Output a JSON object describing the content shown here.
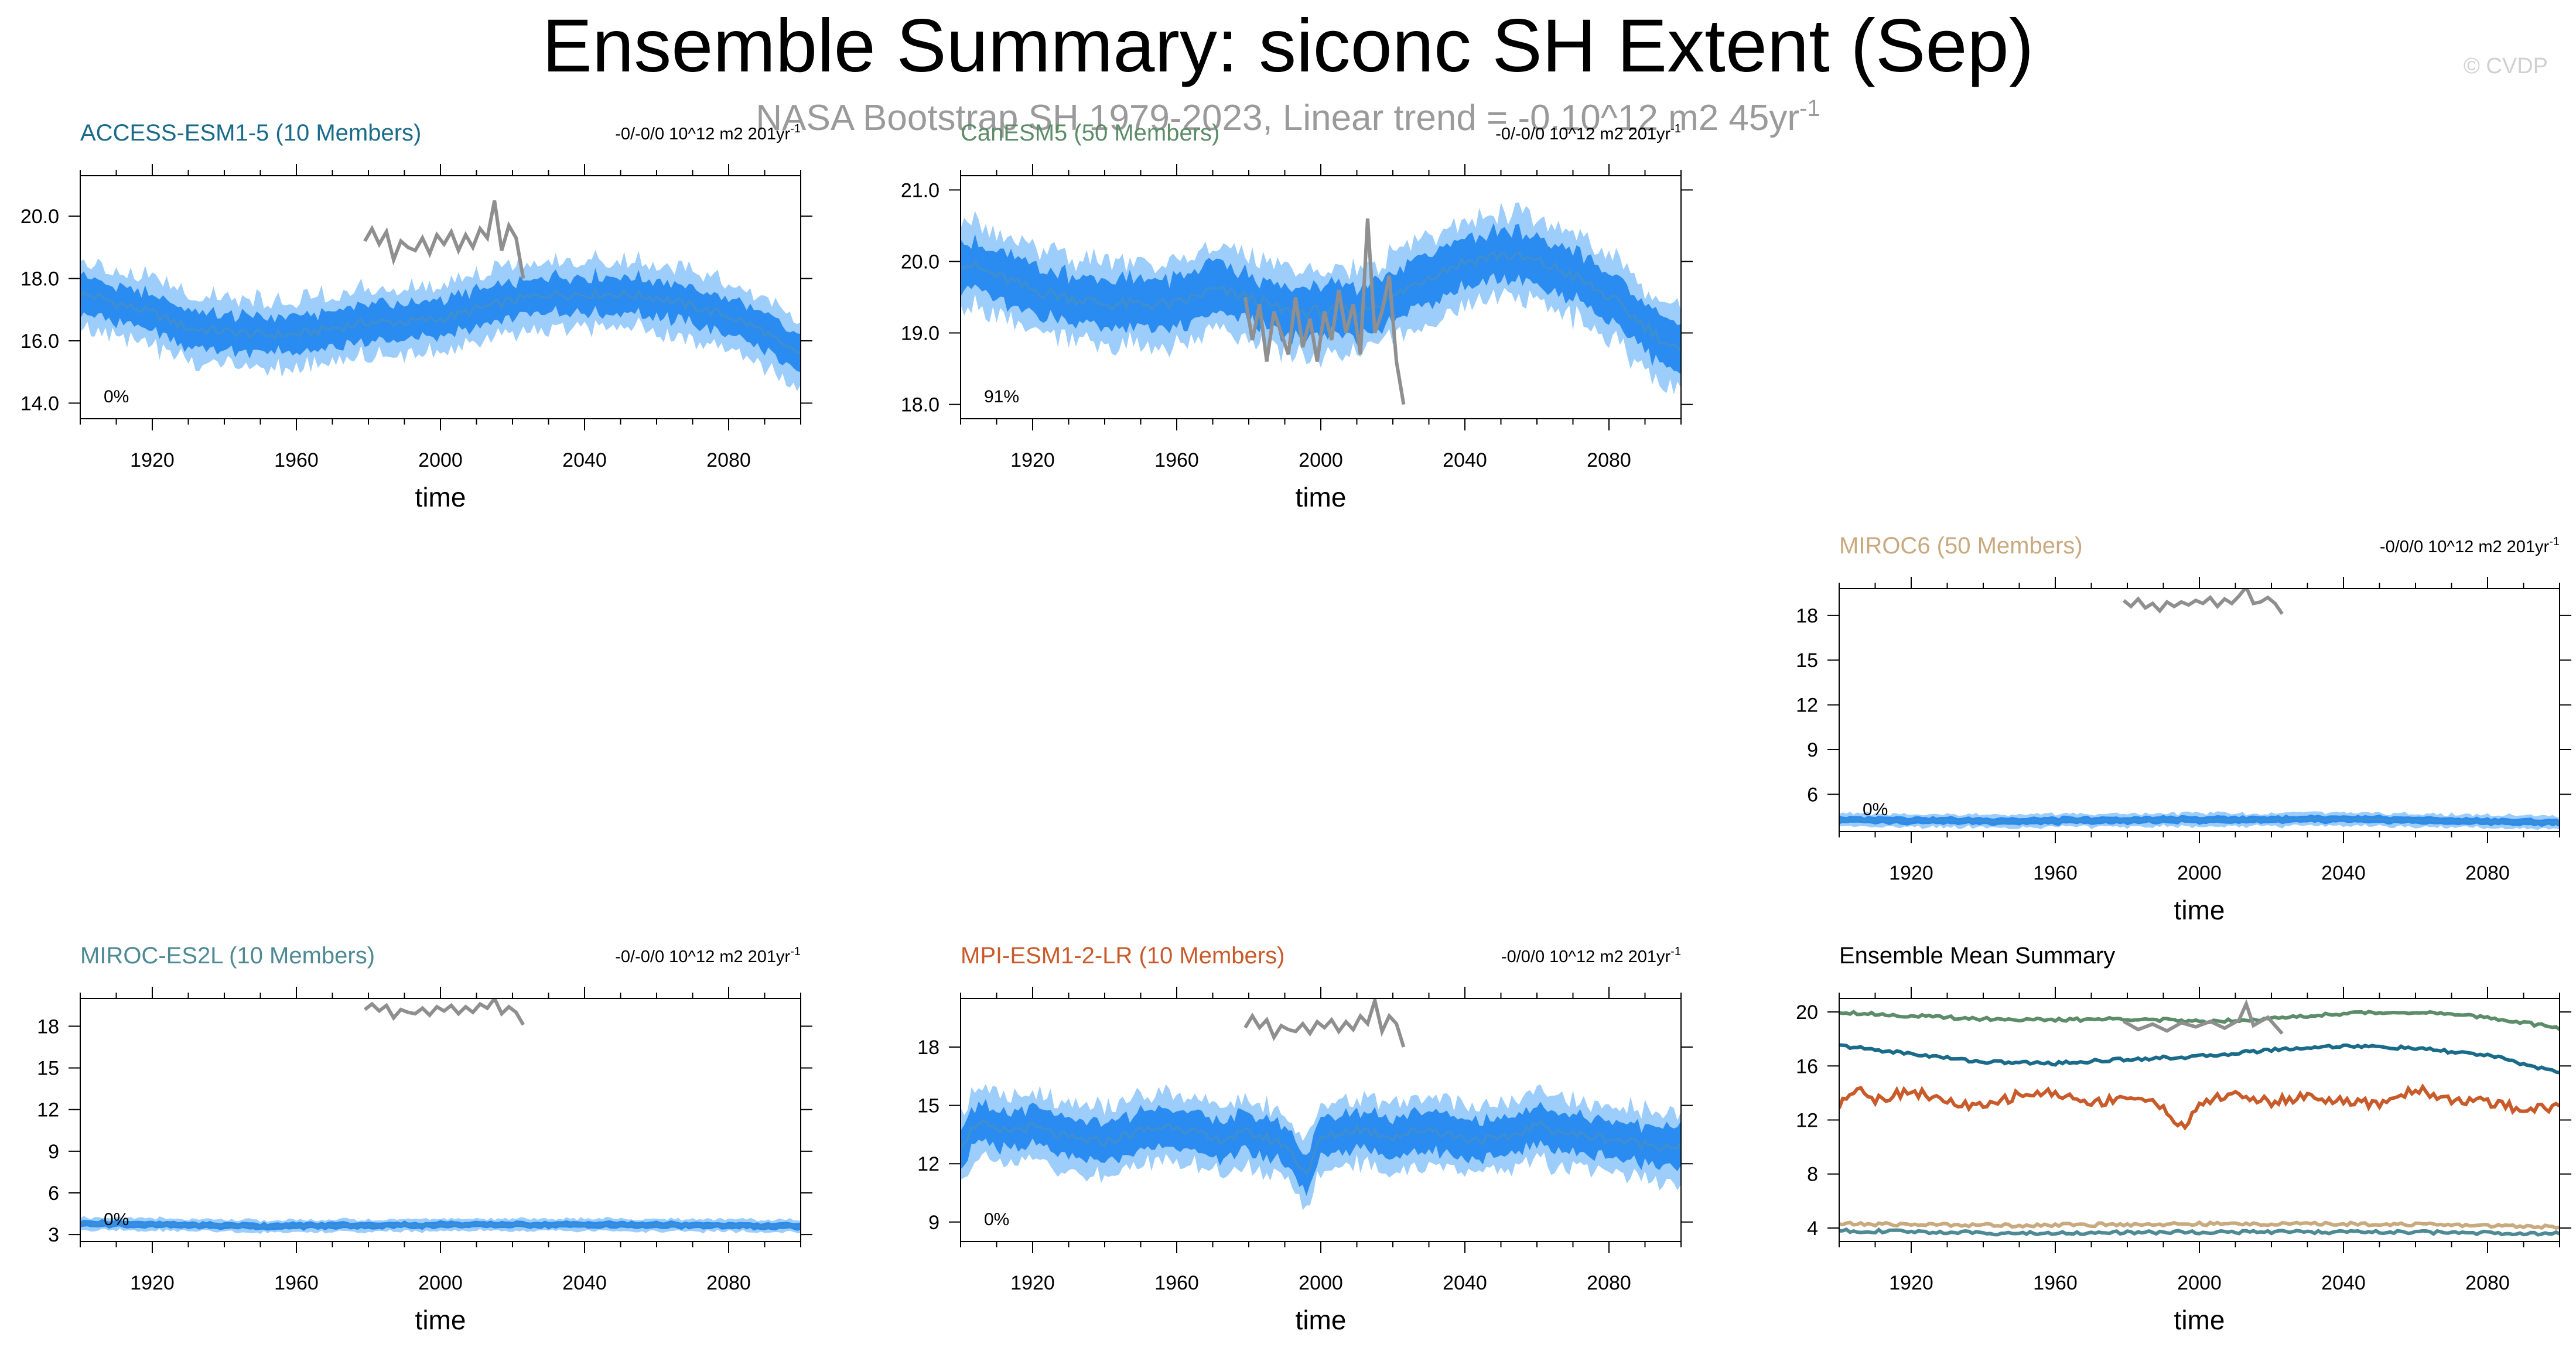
{
  "title": "Ensemble Summary: siconc SH Extent (Sep)",
  "subtitle": "NASA Bootstrap SH 1979-2023, Linear trend = -0.10^12 m2 45yr",
  "subtitle_sup": "-1",
  "watermark": "© CVDP",
  "colors": {
    "band_outer": "#9dcdfa",
    "band_inner": "#2a8cf0",
    "ensemble_mean_line": "#3f8ed0",
    "observations": "#8f8f8f",
    "axis": "#000000"
  },
  "chart_data": [
    {
      "id": "access",
      "type": "line",
      "title": "ACCESS-ESM1-5 (10 Members)",
      "title_color": "#1a6b8a",
      "trend_label": "-0/-0/0 10^12 m2 201yr",
      "trend_sup": "-1",
      "percent": "0%",
      "xlabel": "time",
      "xlim": [
        1900,
        2100
      ],
      "xticks": [
        "1920",
        "1960",
        "2000",
        "2040",
        "2080"
      ],
      "ylim": [
        13.5,
        21.3
      ],
      "yticks": [
        "14.0",
        "16.0",
        "18.0",
        "20.0"
      ],
      "ensemble_mean": {
        "x": [
          1900,
          1905,
          1910,
          1920,
          1930,
          1940,
          1950,
          1960,
          1970,
          1980,
          1990,
          2000,
          2010,
          2020,
          2030,
          2040,
          2050,
          2060,
          2070,
          2080,
          2090,
          2095,
          2100
        ],
        "y": [
          17.5,
          17.4,
          17.2,
          16.9,
          16.4,
          16.3,
          16.2,
          16.2,
          16.4,
          16.6,
          16.6,
          16.7,
          17.0,
          17.3,
          17.5,
          17.5,
          17.5,
          17.4,
          17.1,
          16.8,
          16.3,
          15.8,
          15.6
        ]
      },
      "spread_inner": 0.6,
      "spread_outer": 1.1,
      "observations": {
        "x": [
          1979,
          1981,
          1983,
          1985,
          1987,
          1989,
          1991,
          1993,
          1995,
          1997,
          1999,
          2001,
          2003,
          2005,
          2007,
          2009,
          2011,
          2013,
          2015,
          2017,
          2019,
          2021,
          2023
        ],
        "y": [
          19.2,
          19.6,
          19.1,
          19.5,
          18.6,
          19.2,
          19.0,
          18.9,
          19.3,
          18.8,
          19.4,
          19.1,
          19.5,
          18.9,
          19.4,
          19.0,
          19.6,
          19.3,
          20.5,
          18.9,
          19.7,
          19.3,
          18.0
        ]
      }
    },
    {
      "id": "canesm5",
      "type": "line",
      "title": "CanESM5 (50 Members)",
      "title_color": "#5c8c68",
      "trend_label": "-0/-0/0 10^12 m2 201yr",
      "trend_sup": "-1",
      "percent": "91%",
      "xlabel": "time",
      "xlim": [
        1900,
        2100
      ],
      "xticks": [
        "1920",
        "1960",
        "2000",
        "2040",
        "2080"
      ],
      "ylim": [
        17.8,
        21.2
      ],
      "yticks": [
        "18.0",
        "19.0",
        "20.0",
        "21.0"
      ],
      "ensemble_mean": {
        "x": [
          1900,
          1910,
          1920,
          1930,
          1940,
          1950,
          1960,
          1970,
          1980,
          1990,
          2000,
          2010,
          2020,
          2030,
          2040,
          2050,
          2060,
          2070,
          2080,
          2090,
          2100
        ],
        "y": [
          20.0,
          19.8,
          19.6,
          19.5,
          19.4,
          19.4,
          19.4,
          19.6,
          19.5,
          19.3,
          19.3,
          19.3,
          19.5,
          19.8,
          20.0,
          20.1,
          20.0,
          19.8,
          19.5,
          19.1,
          18.7
        ]
      },
      "spread_inner": 0.35,
      "spread_outer": 0.6,
      "observations": {
        "x": [
          1979,
          1981,
          1983,
          1985,
          1987,
          1989,
          1991,
          1993,
          1995,
          1997,
          1999,
          2001,
          2003,
          2005,
          2007,
          2009,
          2011,
          2013,
          2015,
          2017,
          2019,
          2021,
          2023
        ],
        "y": [
          19.5,
          18.9,
          19.4,
          18.6,
          19.3,
          19.0,
          18.7,
          19.5,
          18.8,
          19.2,
          18.6,
          19.3,
          18.9,
          19.6,
          19.0,
          19.4,
          18.7,
          20.6,
          19.0,
          19.3,
          19.8,
          18.6,
          18.0
        ]
      }
    },
    {
      "id": "miroc6",
      "type": "line",
      "title": "MIROC6 (50 Members)",
      "title_color": "#c9a97e",
      "trend_label": "-0/0/0 10^12 m2 201yr",
      "trend_sup": "-1",
      "percent": "0%",
      "xlabel": "time",
      "xlim": [
        1900,
        2100
      ],
      "xticks": [
        "1920",
        "1960",
        "2000",
        "2040",
        "2080"
      ],
      "ylim": [
        3.5,
        19.8
      ],
      "yticks": [
        "6",
        "9",
        "12",
        "15",
        "18"
      ],
      "ensemble_mean": {
        "x": [
          1900,
          1950,
          2000,
          2050,
          2100
        ],
        "y": [
          4.3,
          4.2,
          4.3,
          4.3,
          4.1
        ]
      },
      "spread_inner": 0.25,
      "spread_outer": 0.45,
      "observations": {
        "x": [
          1979,
          1981,
          1983,
          1985,
          1987,
          1989,
          1991,
          1993,
          1995,
          1997,
          1999,
          2001,
          2003,
          2005,
          2007,
          2009,
          2011,
          2013,
          2015,
          2017,
          2019,
          2021,
          2023
        ],
        "y": [
          19.0,
          18.6,
          19.1,
          18.5,
          18.8,
          18.3,
          18.9,
          18.6,
          18.9,
          18.7,
          19.0,
          18.8,
          19.2,
          18.6,
          19.1,
          18.8,
          19.3,
          19.9,
          18.8,
          18.9,
          19.2,
          18.8,
          18.1
        ]
      }
    },
    {
      "id": "miroc-es2l",
      "type": "line",
      "title": "MIROC-ES2L (10 Members)",
      "title_color": "#4d8a94",
      "trend_label": "-0/-0/0 10^12 m2 201yr",
      "trend_sup": "-1",
      "percent": "0%",
      "xlabel": "time",
      "xlim": [
        1900,
        2100
      ],
      "xticks": [
        "1920",
        "1960",
        "2000",
        "2040",
        "2080"
      ],
      "ylim": [
        2.5,
        20.0
      ],
      "yticks": [
        "3",
        "6",
        "9",
        "12",
        "15",
        "18"
      ],
      "ensemble_mean": {
        "x": [
          1900,
          1950,
          2000,
          2050,
          2100
        ],
        "y": [
          3.8,
          3.6,
          3.7,
          3.7,
          3.6
        ]
      },
      "spread_inner": 0.25,
      "spread_outer": 0.45,
      "observations": {
        "x": [
          1979,
          1981,
          1983,
          1985,
          1987,
          1989,
          1991,
          1993,
          1995,
          1997,
          1999,
          2001,
          2003,
          2005,
          2007,
          2009,
          2011,
          2013,
          2015,
          2017,
          2019,
          2021,
          2023
        ],
        "y": [
          19.2,
          19.6,
          19.1,
          19.5,
          18.6,
          19.2,
          19.0,
          18.9,
          19.3,
          18.8,
          19.4,
          19.1,
          19.5,
          18.9,
          19.4,
          19.0,
          19.6,
          19.3,
          20.0,
          18.9,
          19.4,
          19.0,
          18.1
        ]
      }
    },
    {
      "id": "mpi",
      "type": "line",
      "title": "MPI-ESM1-2-LR (10 Members)",
      "title_color": "#c95a2a",
      "trend_label": "-0/0/0 10^12 m2 201yr",
      "trend_sup": "-1",
      "percent": "0%",
      "xlabel": "time",
      "xlim": [
        1900,
        2100
      ],
      "xticks": [
        "1920",
        "1960",
        "2000",
        "2040",
        "2080"
      ],
      "ylim": [
        8.0,
        20.5
      ],
      "yticks": [
        "9",
        "12",
        "15",
        "18"
      ],
      "ensemble_mean": {
        "x": [
          1900,
          1905,
          1910,
          1920,
          1930,
          1940,
          1950,
          1960,
          1970,
          1980,
          1990,
          1996,
          2000,
          2010,
          2020,
          2030,
          2040,
          2050,
          2060,
          2070,
          2080,
          2090,
          2100
        ],
        "y": [
          13.0,
          14.2,
          13.6,
          13.9,
          13.3,
          13.1,
          13.7,
          14.0,
          13.2,
          13.6,
          13.0,
          11.5,
          13.3,
          13.8,
          13.4,
          13.8,
          13.3,
          13.2,
          14.0,
          13.5,
          13.3,
          13.0,
          12.9
        ]
      },
      "spread_inner": 1.0,
      "spread_outer": 1.8,
      "observations": {
        "x": [
          1979,
          1981,
          1983,
          1985,
          1987,
          1989,
          1991,
          1993,
          1995,
          1997,
          1999,
          2001,
          2003,
          2005,
          2007,
          2009,
          2011,
          2013,
          2015,
          2017,
          2019,
          2021,
          2023
        ],
        "y": [
          19.0,
          19.6,
          19.0,
          19.4,
          18.5,
          19.1,
          18.9,
          18.8,
          19.2,
          18.7,
          19.3,
          19.0,
          19.4,
          18.8,
          19.3,
          18.9,
          19.6,
          19.2,
          20.4,
          18.8,
          19.6,
          19.2,
          18.0
        ]
      }
    },
    {
      "id": "summary",
      "type": "line",
      "title": "Ensemble Mean Summary",
      "title_color": "#000000",
      "xlabel": "time",
      "xlim": [
        1900,
        2100
      ],
      "xticks": [
        "1920",
        "1960",
        "2000",
        "2040",
        "2080"
      ],
      "ylim": [
        3.0,
        21.0
      ],
      "yticks": [
        "4",
        "8",
        "12",
        "16",
        "20"
      ],
      "series": [
        {
          "name": "CanESM5",
          "color": "#5c8c68",
          "x": [
            1900,
            1920,
            1940,
            1960,
            1980,
            2000,
            2020,
            2040,
            2060,
            2080,
            2100
          ],
          "y": [
            20.0,
            19.7,
            19.5,
            19.4,
            19.5,
            19.3,
            19.5,
            19.9,
            20.0,
            19.6,
            18.8
          ]
        },
        {
          "name": "ACCESS-ESM1-5",
          "color": "#1a6b8a",
          "x": [
            1900,
            1920,
            1940,
            1960,
            1980,
            2000,
            2020,
            2040,
            2060,
            2080,
            2100
          ],
          "y": [
            17.5,
            16.9,
            16.3,
            16.2,
            16.5,
            16.7,
            17.2,
            17.5,
            17.3,
            16.8,
            15.5
          ]
        },
        {
          "name": "MPI-ESM1-2-LR",
          "color": "#c95a2a",
          "x": [
            1900,
            1905,
            1910,
            1920,
            1930,
            1940,
            1950,
            1960,
            1970,
            1980,
            1990,
            1996,
            2000,
            2010,
            2020,
            2030,
            2040,
            2050,
            2060,
            2070,
            2080,
            2090,
            2100
          ],
          "y": [
            13.0,
            14.6,
            13.5,
            14.2,
            13.3,
            12.9,
            13.9,
            14.0,
            13.2,
            13.8,
            13.0,
            11.2,
            13.3,
            13.9,
            13.3,
            13.8,
            13.3,
            13.2,
            14.3,
            13.5,
            13.3,
            12.8,
            13.0
          ]
        },
        {
          "name": "MIROC6",
          "color": "#c9a97e",
          "x": [
            1900,
            1950,
            2000,
            2050,
            2100
          ],
          "y": [
            4.3,
            4.2,
            4.3,
            4.3,
            4.1
          ]
        },
        {
          "name": "MIROC-ES2L",
          "color": "#4d8a94",
          "x": [
            1900,
            1950,
            2000,
            2050,
            2100
          ],
          "y": [
            3.8,
            3.6,
            3.7,
            3.7,
            3.6
          ]
        }
      ],
      "observations": {
        "x": [
          1979,
          1983,
          1987,
          1991,
          1995,
          1999,
          2003,
          2007,
          2011,
          2013,
          2015,
          2019,
          2023
        ],
        "y": [
          19.3,
          18.7,
          19.1,
          18.6,
          19.2,
          18.9,
          19.3,
          18.8,
          19.4,
          20.6,
          19.0,
          19.6,
          18.4
        ]
      }
    }
  ]
}
